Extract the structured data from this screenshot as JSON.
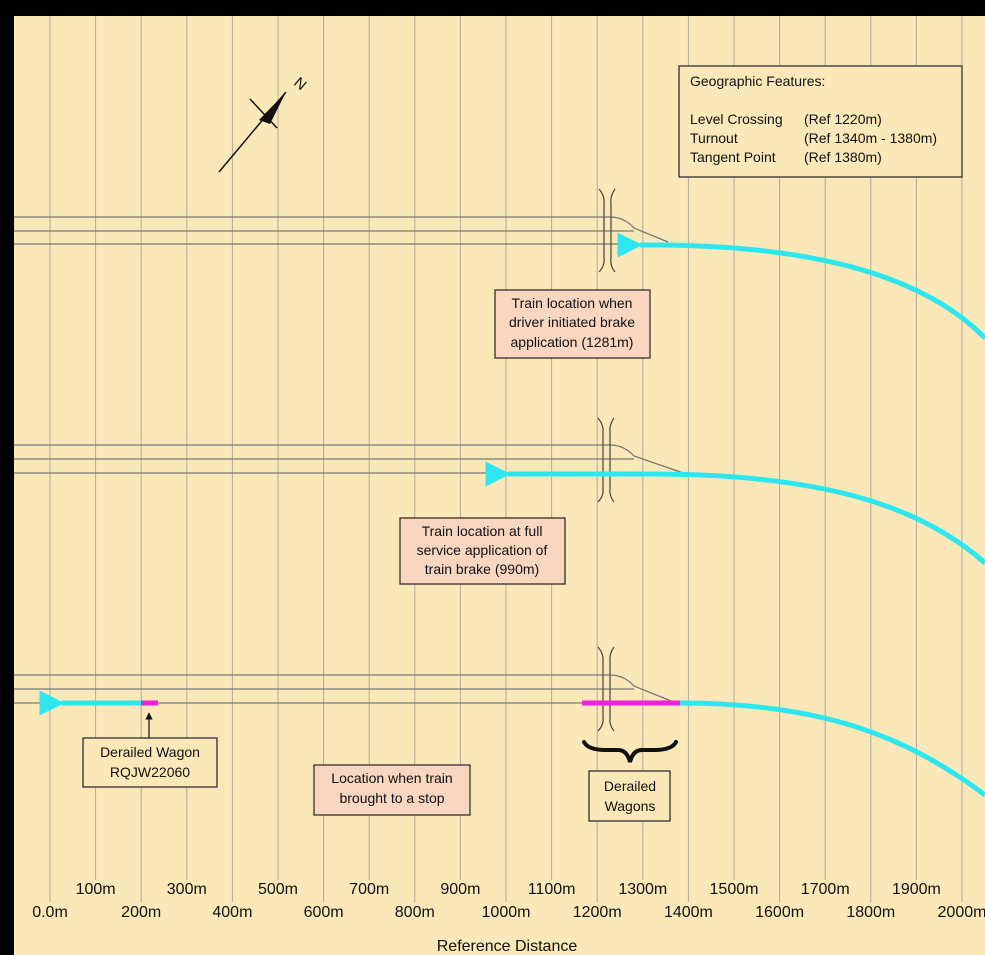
{
  "north_label": "N",
  "legend": {
    "title": "Geographic Features:",
    "rows": [
      {
        "name": "Level Crossing",
        "ref": "(Ref 1220m)"
      },
      {
        "name": "Turnout",
        "ref": "(Ref 1340m - 1380m)"
      },
      {
        "name": "Tangent Point",
        "ref": "(Ref 1380m)"
      }
    ]
  },
  "annotations": {
    "brake_initiated": [
      "Train location when",
      "driver initiated brake",
      "application (1281m)"
    ],
    "full_service": [
      "Train location at full",
      "service application of",
      "train brake (990m)"
    ],
    "stop_location": [
      "Location when train",
      "brought to a stop"
    ],
    "derailed_wagon": [
      "Derailed Wagon",
      "RQJW22060"
    ],
    "derailed_wagons": [
      "Derailed",
      "Wagons"
    ]
  },
  "axis": {
    "title": "Reference Distance",
    "major_ticks": [
      "0.0m",
      "200m",
      "400m",
      "600m",
      "800m",
      "1000m",
      "1200m",
      "1400m",
      "1600m",
      "1800m",
      "2000m"
    ],
    "minor_ticks": [
      "100m",
      "300m",
      "500m",
      "700m",
      "900m",
      "1100m",
      "1300m",
      "1500m",
      "1700m",
      "1900m"
    ]
  },
  "markers": {
    "brake_initiated_m": 1281,
    "full_service_m": 990,
    "stop_m": 200,
    "level_crossing_m": 1220,
    "turnout_start_m": 1340,
    "turnout_end_m": 1380,
    "tangent_point_m": 1380
  },
  "colors": {
    "background": "#fbe8b8",
    "grid": "#b3ab9a",
    "track": "#777777",
    "train_path": "#2ee6f0",
    "derailed": "#ee22dd",
    "note_fill": "#f9d6c0",
    "box_fill": "#fbe8b8"
  }
}
